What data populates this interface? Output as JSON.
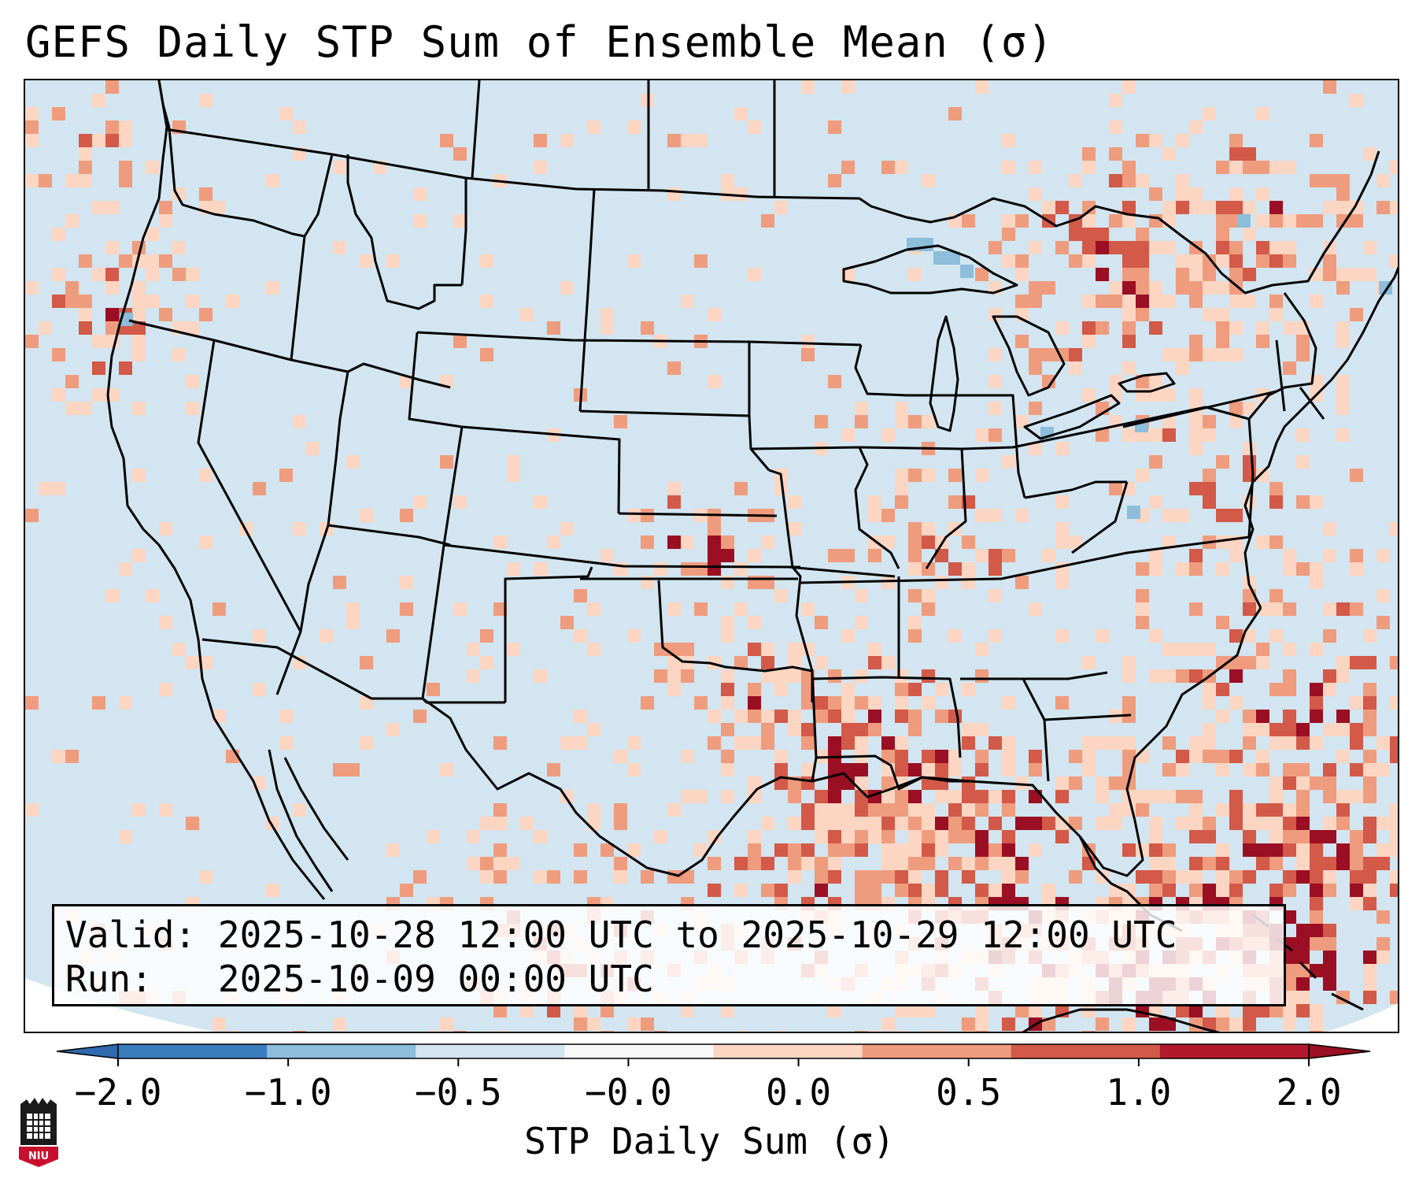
{
  "title": "GEFS Daily STP Sum of Ensemble Mean (σ)",
  "valid_label": "Valid:",
  "valid_value": "2025-10-28 12:00 UTC to 2025-10-29 12:00 UTC",
  "run_label": "Run:",
  "run_value": "2025-10-09 00:00 UTC",
  "colorbar": {
    "label": "STP Daily Sum (σ)",
    "ticks": [
      "−2.0",
      "−1.0",
      "−0.5",
      "−0.0",
      "0.0",
      "0.5",
      "1.0",
      "2.0"
    ],
    "colors": [
      "#3a7ebf",
      "#8cbdda",
      "#d2e5f0",
      "#f8f8f8",
      "#fcd6c2",
      "#ef9c7e",
      "#d35948",
      "#b2182b"
    ],
    "under_color": "#2e6aad",
    "over_color": "#9a0f23"
  },
  "map": {
    "background_color": "#d2e5f0",
    "region": "Contiguous United States",
    "high_anomaly_regions": [
      "Gulf Coast",
      "Southeast",
      "Kansas",
      "Pacific Northwest coast",
      "Western Atlantic"
    ]
  },
  "logo": {
    "text": "NIU"
  }
}
